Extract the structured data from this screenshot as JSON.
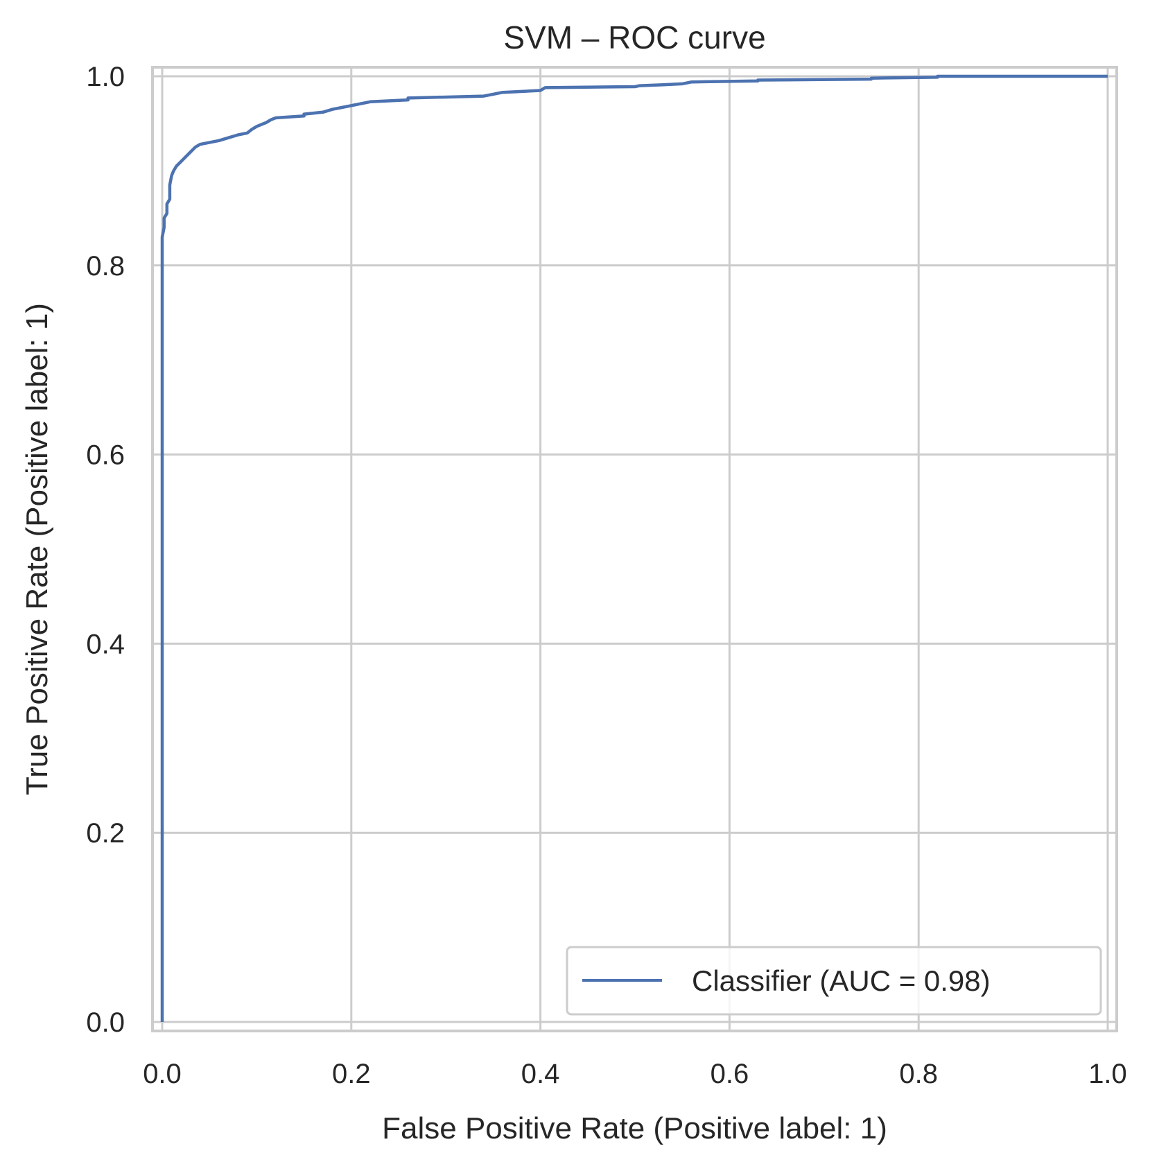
{
  "chart_data": {
    "type": "line",
    "title": "SVM – ROC curve",
    "xlabel": "False Positive Rate (Positive label: 1)",
    "ylabel": "True Positive Rate (Positive label: 1)",
    "xlim": [
      0.0,
      1.0
    ],
    "ylim": [
      0.0,
      1.0
    ],
    "xticks": [
      "0.0",
      "0.2",
      "0.4",
      "0.6",
      "0.8",
      "1.0"
    ],
    "yticks": [
      "0.0",
      "0.2",
      "0.4",
      "0.6",
      "0.8",
      "1.0"
    ],
    "grid": true,
    "legend_position": "lower-right",
    "series": [
      {
        "name": "Classifier (AUC = 0.98)",
        "color": "#4c72b0",
        "x": [
          0.0,
          0.0,
          0.0,
          0.0,
          0.002,
          0.002,
          0.005,
          0.005,
          0.008,
          0.008,
          0.01,
          0.012,
          0.015,
          0.02,
          0.025,
          0.03,
          0.035,
          0.04,
          0.04,
          0.06,
          0.06,
          0.07,
          0.07,
          0.08,
          0.09,
          0.095,
          0.1,
          0.11,
          0.115,
          0.12,
          0.15,
          0.15,
          0.17,
          0.18,
          0.19,
          0.2,
          0.21,
          0.22,
          0.26,
          0.26,
          0.34,
          0.35,
          0.36,
          0.4,
          0.405,
          0.5,
          0.505,
          0.53,
          0.55,
          0.56,
          0.63,
          0.63,
          0.75,
          0.75,
          0.82,
          0.82,
          1.0
        ],
        "y": [
          0.0,
          0.72,
          0.78,
          0.83,
          0.84,
          0.85,
          0.855,
          0.865,
          0.87,
          0.885,
          0.895,
          0.9,
          0.905,
          0.91,
          0.915,
          0.92,
          0.925,
          0.928,
          0.928,
          0.932,
          0.932,
          0.935,
          0.935,
          0.938,
          0.94,
          0.944,
          0.947,
          0.951,
          0.954,
          0.956,
          0.958,
          0.96,
          0.962,
          0.965,
          0.967,
          0.969,
          0.971,
          0.973,
          0.975,
          0.977,
          0.979,
          0.981,
          0.983,
          0.985,
          0.988,
          0.989,
          0.99,
          0.991,
          0.992,
          0.994,
          0.995,
          0.996,
          0.997,
          0.998,
          0.999,
          1.0,
          1.0
        ]
      }
    ]
  },
  "colors": {
    "grid": "#cccccc",
    "frame": "#cccccc",
    "text": "#262626",
    "background": "#ffffff"
  }
}
